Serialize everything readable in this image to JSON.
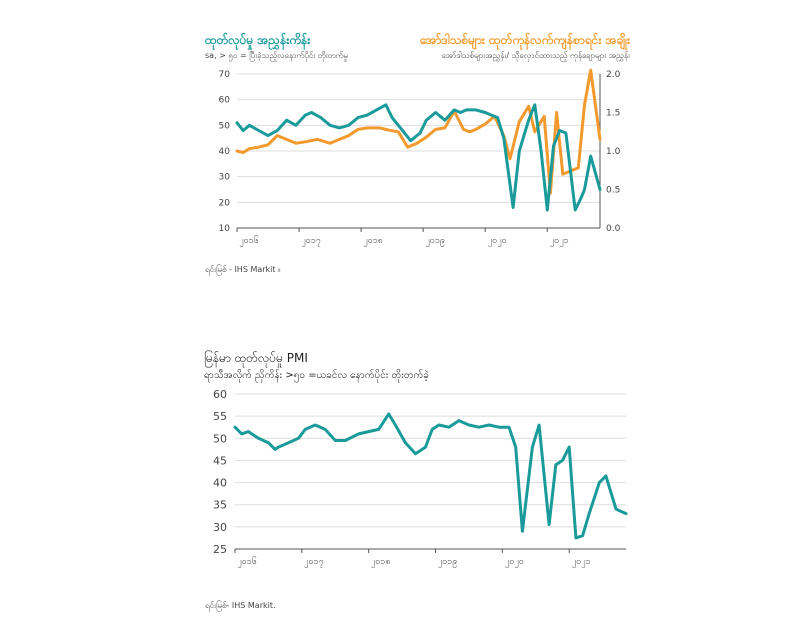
{
  "colors": {
    "teal": "#1a9a9a",
    "orange": "#f29a2e",
    "grid": "#dedede",
    "axis": "#555555"
  },
  "chart_data": [
    {
      "type": "line",
      "title_left": "ထုတ်လုပ်မှု အညွှန်းကိန်း",
      "title_right": "အော်ဒါသစ်များ ထုတ်ကုန်လက်ကျန်စာရင်း အချိုး",
      "subtitle_left": "sa, > ၅၀ = ပြီးခဲ့သည့်လနောက်ပိုင်း တိုးတက်မှု",
      "subtitle_right": "အော်ဒါသစ်များအညွှန်း/ သိုလှောင်ထားသည့် ကုန်ချောများ အညွှန်း",
      "x_ticks": [
        "၂၀၁၆",
        "၂၀၁၇",
        "၂၀၁၈",
        "၂၀၁၉",
        "၂၀၂၀",
        "၂၀၂၁"
      ],
      "x_range": [
        2016.0,
        2021.85
      ],
      "y_left": {
        "ticks": [
          "10",
          "20",
          "30",
          "40",
          "50",
          "60",
          "70"
        ],
        "lim": [
          10,
          70
        ]
      },
      "y_right": {
        "ticks": [
          "0.0",
          "0.5",
          "1.0",
          "1.5",
          "2.0"
        ],
        "lim": [
          0,
          2
        ]
      },
      "grid": true,
      "series": [
        {
          "axis": "left",
          "color": "#1a9a9a",
          "x": [
            2016.0,
            2016.1,
            2016.2,
            2016.35,
            2016.5,
            2016.65,
            2016.8,
            2016.95,
            2017.1,
            2017.2,
            2017.35,
            2017.5,
            2017.65,
            2017.8,
            2017.95,
            2018.1,
            2018.25,
            2018.4,
            2018.5,
            2018.6,
            2018.8,
            2018.95,
            2019.05,
            2019.2,
            2019.35,
            2019.5,
            2019.6,
            2019.7,
            2019.85,
            2020.0,
            2020.1,
            2020.2,
            2020.3,
            2020.45,
            2020.55,
            2020.7,
            2020.8,
            2020.9,
            2021.0,
            2021.1,
            2021.2,
            2021.3,
            2021.45,
            2021.55,
            2021.6,
            2021.7,
            2021.85
          ],
          "values": [
            51,
            48,
            50,
            48,
            46,
            48,
            52,
            50,
            54,
            55,
            53,
            50,
            49,
            50,
            53,
            54,
            56,
            58,
            53,
            50,
            44,
            47,
            52,
            55,
            52,
            56,
            55,
            56,
            56,
            55,
            54,
            53,
            45,
            18,
            40,
            52,
            58,
            40,
            17,
            42,
            48,
            47,
            17,
            22,
            25,
            38,
            25
          ]
        },
        {
          "axis": "right",
          "color": "#f29a2e",
          "x": [
            2016.0,
            2016.1,
            2016.2,
            2016.35,
            2016.5,
            2016.65,
            2016.8,
            2016.95,
            2017.1,
            2017.3,
            2017.5,
            2017.65,
            2017.8,
            2017.95,
            2018.1,
            2018.3,
            2018.45,
            2018.6,
            2018.75,
            2018.9,
            2019.05,
            2019.2,
            2019.35,
            2019.5,
            2019.65,
            2019.75,
            2019.85,
            2020.0,
            2020.15,
            2020.3,
            2020.4,
            2020.55,
            2020.7,
            2020.8,
            2020.95,
            2021.05,
            2021.15,
            2021.25,
            2021.4,
            2021.5,
            2021.6,
            2021.7,
            2021.85
          ],
          "values": [
            1.0,
            0.98,
            1.03,
            1.05,
            1.08,
            1.2,
            1.15,
            1.1,
            1.12,
            1.15,
            1.1,
            1.15,
            1.2,
            1.28,
            1.3,
            1.3,
            1.27,
            1.25,
            1.05,
            1.1,
            1.18,
            1.28,
            1.3,
            1.52,
            1.28,
            1.25,
            1.28,
            1.35,
            1.45,
            1.2,
            0.9,
            1.38,
            1.58,
            1.25,
            1.45,
            0.45,
            1.5,
            0.7,
            0.75,
            0.78,
            1.6,
            2.05,
            1.15
          ]
        }
      ],
      "source": "ရင်းမြစ် - IHS Markit ။"
    },
    {
      "type": "line",
      "title": "မြန်မာ ထုတ်လုပ်မှု PMI",
      "subtitle": "ရာသီအလိုက် ညှိကိန်း >၅၀ =ယခင်လ နောက်ပိုင်း တိုးတက်ခဲ့",
      "x_ticks": [
        "၂၀၁၆",
        "၂၀၁၇",
        "၂၀၁၈",
        "၂၀၁၉",
        "၂၀၂၀",
        "၂၀၂၁"
      ],
      "x_range": [
        2016.0,
        2021.85
      ],
      "y": {
        "ticks": [
          "25",
          "30",
          "35",
          "40",
          "45",
          "50",
          "55",
          "60"
        ],
        "lim": [
          25,
          60
        ]
      },
      "grid": true,
      "series": [
        {
          "color": "#1a9a9a",
          "x": [
            2016.0,
            2016.1,
            2016.2,
            2016.35,
            2016.5,
            2016.6,
            2016.65,
            2016.8,
            2016.95,
            2017.05,
            2017.2,
            2017.35,
            2017.5,
            2017.65,
            2017.85,
            2018.0,
            2018.15,
            2018.3,
            2018.4,
            2018.55,
            2018.7,
            2018.85,
            2018.95,
            2019.05,
            2019.2,
            2019.35,
            2019.5,
            2019.65,
            2019.8,
            2019.95,
            2020.1,
            2020.2,
            2020.3,
            2020.45,
            2020.55,
            2020.7,
            2020.8,
            2020.9,
            2021.0,
            2021.1,
            2021.2,
            2021.3,
            2021.45,
            2021.55,
            2021.7,
            2021.85
          ],
          "values": [
            52.5,
            51,
            51.5,
            50,
            49,
            47.5,
            48,
            49,
            50,
            52,
            53,
            52,
            49.5,
            49.5,
            51,
            51.5,
            52,
            55.5,
            53,
            49,
            46.5,
            48,
            52,
            53,
            52.5,
            54,
            53,
            52.5,
            53,
            52.5,
            52.5,
            48,
            29,
            48,
            53,
            30.5,
            44,
            45,
            48,
            27.5,
            28,
            33,
            40,
            41.5,
            34,
            33
          ]
        }
      ],
      "source": "ရင်းမြစ်- IHS Markit."
    }
  ]
}
